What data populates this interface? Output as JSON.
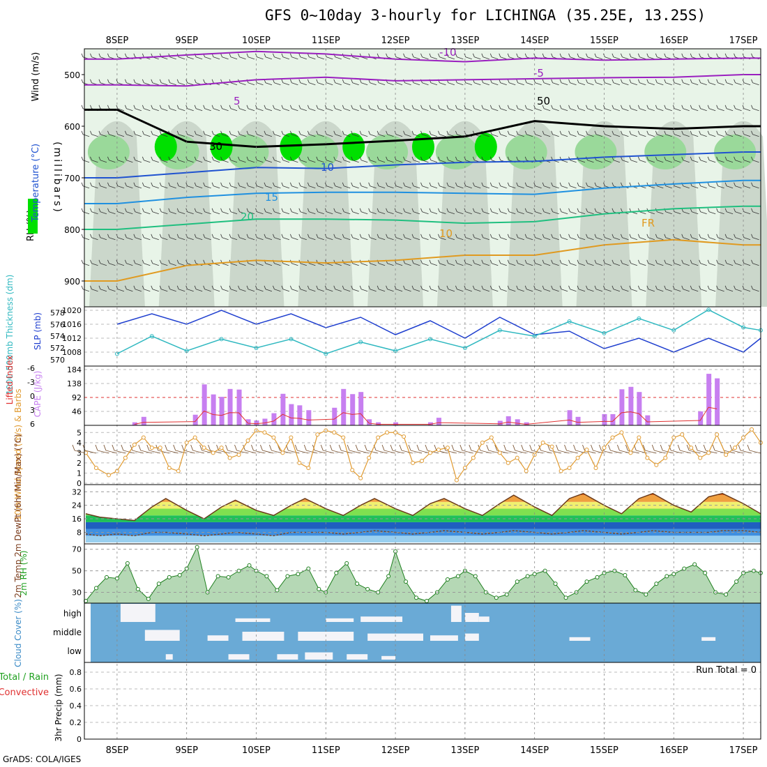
{
  "header": {
    "title": "GFS 0~10day 3-hourly for LICHINGA (35.25E, 13.25S)",
    "credit": "GrADS: COLA/IGES"
  },
  "time_axis": {
    "labels": [
      "8SEP",
      "9SEP",
      "10SEP",
      "11SEP",
      "12SEP",
      "13SEP",
      "14SEP",
      "15SEP",
      "16SEP",
      "17SEP"
    ],
    "start_offset_days": -0.47,
    "end_offset_days": 9.25
  },
  "colors": {
    "rh_light": "#e8f4e8",
    "rh_gray": "#c5d1c5",
    "rh_mid": "#9ad99a",
    "rh_bright": "#00e000",
    "temp_neg10": "#9a1fbf",
    "temp_5": "#1f52d0",
    "temp_10": "#1f90e0",
    "temp_15": "#1fbf7f",
    "temp_20": "#e09a20",
    "slp": "#1f3fcf",
    "thickness": "#2fb8c0",
    "cape": "#c77ff0",
    "lifted": "#e03030",
    "wind_line": "#e09a30",
    "cloud_bg": "#6aaad6",
    "cloud_fill": "#f4f4f8"
  },
  "chart_data": [
    {
      "type": "area",
      "panel": "upper-air",
      "ylabel_parts": [
        "RH (%)",
        "Temperature (°C)",
        "Wind (m/s)"
      ],
      "yaxis_label": "(millibars)",
      "yticks": [
        500,
        600,
        700,
        800,
        900
      ],
      "ylim": [
        950,
        450
      ],
      "contour_labels": [
        "-10",
        "-5",
        "5",
        "10",
        "15",
        "20",
        "FR",
        "50",
        "30",
        "10"
      ],
      "isotherms": [
        {
          "name": "-10",
          "x": [
            0,
            1,
            2,
            3,
            4,
            5,
            6,
            7,
            8,
            9
          ],
          "y": [
            470,
            462,
            455,
            460,
            470,
            475,
            468,
            472,
            470,
            468
          ]
        },
        {
          "name": "-5",
          "x": [
            0,
            1,
            2,
            3,
            4,
            5,
            6,
            7,
            8,
            9
          ],
          "y": [
            520,
            522,
            510,
            505,
            512,
            510,
            508,
            506,
            505,
            500
          ]
        },
        {
          "name": "FR",
          "x": [
            0,
            1,
            2,
            3,
            4,
            5,
            6,
            7,
            8,
            9
          ],
          "y": [
            568,
            630,
            640,
            635,
            628,
            620,
            590,
            600,
            605,
            600
          ]
        },
        {
          "name": "5",
          "x": [
            0,
            1,
            2,
            3,
            4,
            5,
            6,
            7,
            8,
            9
          ],
          "y": [
            700,
            690,
            680,
            682,
            675,
            670,
            668,
            660,
            655,
            650
          ]
        },
        {
          "name": "10",
          "x": [
            0,
            1,
            2,
            3,
            4,
            5,
            6,
            7,
            8,
            9
          ],
          "y": [
            750,
            738,
            730,
            728,
            728,
            730,
            732,
            720,
            712,
            705
          ]
        },
        {
          "name": "15",
          "x": [
            0,
            1,
            2,
            3,
            4,
            5,
            6,
            7,
            8,
            9
          ],
          "y": [
            800,
            790,
            780,
            780,
            782,
            788,
            785,
            770,
            760,
            755
          ]
        },
        {
          "name": "20",
          "x": [
            0,
            1,
            2,
            3,
            4,
            5,
            6,
            7,
            8,
            9
          ],
          "y": [
            900,
            870,
            860,
            865,
            860,
            850,
            850,
            830,
            820,
            830
          ]
        }
      ]
    },
    {
      "type": "line",
      "panel": "slp-thickness",
      "ylabel_left": "1000-500mb Thickness (dm)",
      "ylabel_right": "SLP (mb)",
      "left_ticks": [
        570,
        572,
        574,
        576,
        578
      ],
      "right_ticks": [
        1008,
        1012,
        1016,
        1020
      ],
      "series": [
        {
          "name": "SLP",
          "axis": "right",
          "x": [
            0,
            0.5,
            1,
            1.5,
            2,
            2.5,
            3,
            3.5,
            4,
            4.5,
            5,
            5.5,
            6,
            6.5,
            7,
            7.5,
            8,
            8.5,
            9,
            9.25
          ],
          "y": [
            1016,
            1019,
            1016,
            1020,
            1016,
            1019,
            1015,
            1018,
            1013,
            1017,
            1012,
            1018,
            1013,
            1014,
            1009,
            1012,
            1008,
            1012,
            1008,
            1012
          ]
        },
        {
          "name": "Thickness",
          "axis": "left",
          "x": [
            0,
            0.5,
            1,
            1.5,
            2,
            2.5,
            3,
            3.5,
            4,
            4.5,
            5,
            5.5,
            6,
            6.5,
            7,
            7.5,
            8,
            8.5,
            9,
            9.25
          ],
          "y": [
            571,
            574,
            571.5,
            573.5,
            572,
            573.5,
            571,
            573,
            571.5,
            573.5,
            572,
            575,
            574,
            576.5,
            574.5,
            577,
            575,
            578.5,
            575.5,
            575
          ]
        }
      ]
    },
    {
      "type": "bar",
      "panel": "cape-li",
      "ylabel_left": "Lifted Index",
      "ylabel_right": "CAPE (J/kg)",
      "left_ticks": [
        "6",
        "3",
        "0",
        "-3",
        "-6"
      ],
      "right_ticks": [
        "46",
        "92",
        "138",
        "184"
      ],
      "cape_x": [
        0.25,
        0.38,
        1.12,
        1.25,
        1.38,
        1.5,
        1.62,
        1.75,
        1.88,
        2.0,
        2.12,
        2.25,
        2.38,
        2.5,
        2.62,
        2.75,
        3.12,
        3.25,
        3.38,
        3.5,
        3.62,
        3.75,
        4.0,
        4.5,
        4.62,
        5.5,
        5.62,
        5.75,
        5.88,
        6.5,
        6.62,
        7.0,
        7.12,
        7.25,
        7.38,
        7.5,
        7.62,
        8.38,
        8.5,
        8.62
      ],
      "cape_y": [
        10,
        28,
        35,
        135,
        102,
        94,
        120,
        118,
        20,
        16,
        22,
        40,
        104,
        70,
        66,
        50,
        58,
        120,
        103,
        110,
        20,
        10,
        10,
        10,
        25,
        15,
        30,
        20,
        10,
        50,
        28,
        37,
        37,
        119,
        127,
        110,
        33,
        46,
        170,
        155
      ]
    },
    {
      "type": "line",
      "panel": "wind10m",
      "ylabel": "10m Wind Speed (m/s) & Barbs",
      "yticks": [
        0,
        1,
        2,
        3,
        4,
        5
      ],
      "x": [
        -0.45,
        -0.3,
        -0.12,
        0,
        0.12,
        0.25,
        0.38,
        0.5,
        0.62,
        0.75,
        0.88,
        1,
        1.12,
        1.25,
        1.38,
        1.5,
        1.62,
        1.75,
        1.88,
        2,
        2.12,
        2.25,
        2.38,
        2.5,
        2.62,
        2.75,
        2.88,
        3,
        3.12,
        3.25,
        3.38,
        3.5,
        3.62,
        3.75,
        3.88,
        4,
        4.12,
        4.25,
        4.38,
        4.5,
        4.62,
        4.75,
        4.88,
        5,
        5.12,
        5.25,
        5.38,
        5.5,
        5.62,
        5.75,
        5.88,
        6,
        6.12,
        6.25,
        6.38,
        6.5,
        6.62,
        6.75,
        6.88,
        7,
        7.12,
        7.25,
        7.38,
        7.5,
        7.62,
        7.75,
        7.88,
        8,
        8.12,
        8.25,
        8.38,
        8.5,
        8.62,
        8.75,
        8.88,
        9,
        9.12,
        9.25
      ],
      "y": [
        3,
        1.5,
        0.8,
        1.2,
        2.5,
        3.8,
        4.5,
        3.5,
        3.5,
        1.5,
        1.2,
        4,
        4.5,
        3.5,
        3,
        3.5,
        2.5,
        2.8,
        4.2,
        5.2,
        5,
        4.5,
        3,
        4.5,
        2,
        1.5,
        4.8,
        5.2,
        5,
        4.5,
        1.3,
        0.5,
        2.5,
        4.5,
        5,
        5,
        4.6,
        2,
        2.2,
        3,
        3.3,
        3.5,
        0.3,
        1.5,
        2.5,
        4,
        4.5,
        3,
        2,
        2.5,
        1.2,
        2.8,
        4,
        3.6,
        1.2,
        1.5,
        2.5,
        3.3,
        1.5,
        3.5,
        4.5,
        5,
        3,
        4.5,
        2.5,
        1.8,
        2.5,
        4.5,
        4.8,
        3.5,
        2.5,
        3,
        4.8,
        2.8,
        3.5,
        4.5,
        5.3,
        4
      ]
    },
    {
      "type": "area",
      "panel": "temp2m",
      "ylabel": "2m Temp 2m DewPt (6hr Min/Max) (°C)",
      "yticks": [
        8,
        16,
        24,
        32
      ],
      "x": [
        -0.45,
        -0.25,
        0,
        0.25,
        0.5,
        0.7,
        1,
        1.25,
        1.5,
        1.7,
        2,
        2.25,
        2.5,
        2.7,
        3,
        3.25,
        3.5,
        3.7,
        4,
        4.25,
        4.5,
        4.7,
        5,
        5.25,
        5.5,
        5.7,
        6,
        6.25,
        6.5,
        6.7,
        7,
        7.25,
        7.5,
        7.7,
        8,
        8.25,
        8.5,
        8.7,
        9,
        9.25
      ],
      "temp": [
        19,
        17,
        16,
        15,
        23,
        28,
        21,
        16,
        23,
        27,
        21,
        18,
        24,
        28,
        22,
        18,
        24,
        28,
        22,
        18,
        25,
        28,
        22,
        18,
        25,
        30,
        23,
        18,
        28,
        31,
        24,
        19,
        28,
        31,
        24,
        20,
        29,
        31,
        25,
        19
      ],
      "dewpt": [
        7,
        6,
        7,
        6,
        8,
        8,
        7,
        6,
        7,
        8,
        7,
        6,
        8,
        8,
        8,
        7,
        8,
        9,
        8,
        7,
        8,
        9,
        8,
        7,
        8,
        9,
        8,
        7,
        8,
        9,
        8,
        7,
        8,
        9,
        8,
        8,
        8,
        9,
        9,
        8
      ]
    },
    {
      "type": "area",
      "panel": "rh2m",
      "ylabel": "2m RH (%)",
      "yticks": [
        30,
        50,
        70
      ],
      "x": [
        -0.45,
        -0.3,
        -0.15,
        0,
        0.15,
        0.3,
        0.45,
        0.6,
        0.75,
        0.9,
        1,
        1.15,
        1.3,
        1.45,
        1.6,
        1.75,
        1.9,
        2,
        2.15,
        2.3,
        2.45,
        2.6,
        2.75,
        2.9,
        3,
        3.15,
        3.3,
        3.45,
        3.6,
        3.75,
        3.9,
        4,
        4.15,
        4.3,
        4.45,
        4.6,
        4.75,
        4.9,
        5,
        5.15,
        5.3,
        5.45,
        5.6,
        5.75,
        5.9,
        6,
        6.15,
        6.3,
        6.45,
        6.6,
        6.75,
        6.9,
        7,
        7.15,
        7.3,
        7.45,
        7.6,
        7.75,
        7.9,
        8,
        8.15,
        8.3,
        8.45,
        8.6,
        8.75,
        8.9,
        9,
        9.15,
        9.25
      ],
      "y": [
        22,
        34,
        44,
        43,
        57,
        33,
        24,
        38,
        44,
        46,
        52,
        72,
        30,
        45,
        44,
        50,
        55,
        50,
        45,
        32,
        45,
        47,
        52,
        33,
        30,
        48,
        57,
        38,
        33,
        30,
        45,
        68,
        40,
        25,
        22,
        30,
        42,
        45,
        50,
        45,
        30,
        25,
        28,
        40,
        45,
        47,
        50,
        38,
        25,
        30,
        40,
        44,
        48,
        50,
        46,
        32,
        28,
        38,
        45,
        47,
        52,
        56,
        48,
        30,
        28,
        40,
        48,
        50,
        48
      ]
    },
    {
      "type": "heatmap",
      "panel": "cloud",
      "ylabel": "Cloud Cover (%)",
      "rows": [
        "high",
        "middle",
        "low"
      ],
      "high": [
        [
          0.05,
          0.55,
          1
        ],
        [
          4.8,
          4.95,
          0.9
        ],
        [
          5.0,
          5.2,
          0.5
        ],
        [
          5.2,
          5.35,
          0.3
        ],
        [
          3.5,
          4.1,
          0.3
        ],
        [
          3.0,
          3.4,
          0.2
        ],
        [
          1.7,
          2.2,
          0.2
        ]
      ],
      "middle": [
        [
          0.4,
          0.9,
          0.6
        ],
        [
          1.3,
          1.6,
          0.3
        ],
        [
          1.8,
          2.4,
          0.5
        ],
        [
          2.6,
          3.4,
          0.5
        ],
        [
          3.6,
          4.4,
          0.4
        ],
        [
          4.5,
          4.9,
          0.3
        ],
        [
          5.0,
          5.2,
          0.4
        ],
        [
          6.5,
          6.8,
          0.2
        ],
        [
          8.4,
          8.6,
          0.2
        ]
      ],
      "low": [
        [
          0.7,
          0.8,
          0.3
        ],
        [
          1.6,
          1.9,
          0.3
        ],
        [
          2.3,
          2.6,
          0.3
        ],
        [
          2.7,
          3.1,
          0.4
        ],
        [
          3.3,
          3.6,
          0.3
        ],
        [
          3.8,
          4.0,
          0.2
        ]
      ]
    },
    {
      "type": "line",
      "panel": "precip",
      "ylabel_parts": [
        "Total / Rain",
        "Convective",
        "3hr Precip (mm)"
      ],
      "yticks": [
        "0",
        "0.2",
        "0.4",
        "0.6",
        "0.8"
      ],
      "annotation": "Run Total = 0",
      "series": []
    }
  ]
}
